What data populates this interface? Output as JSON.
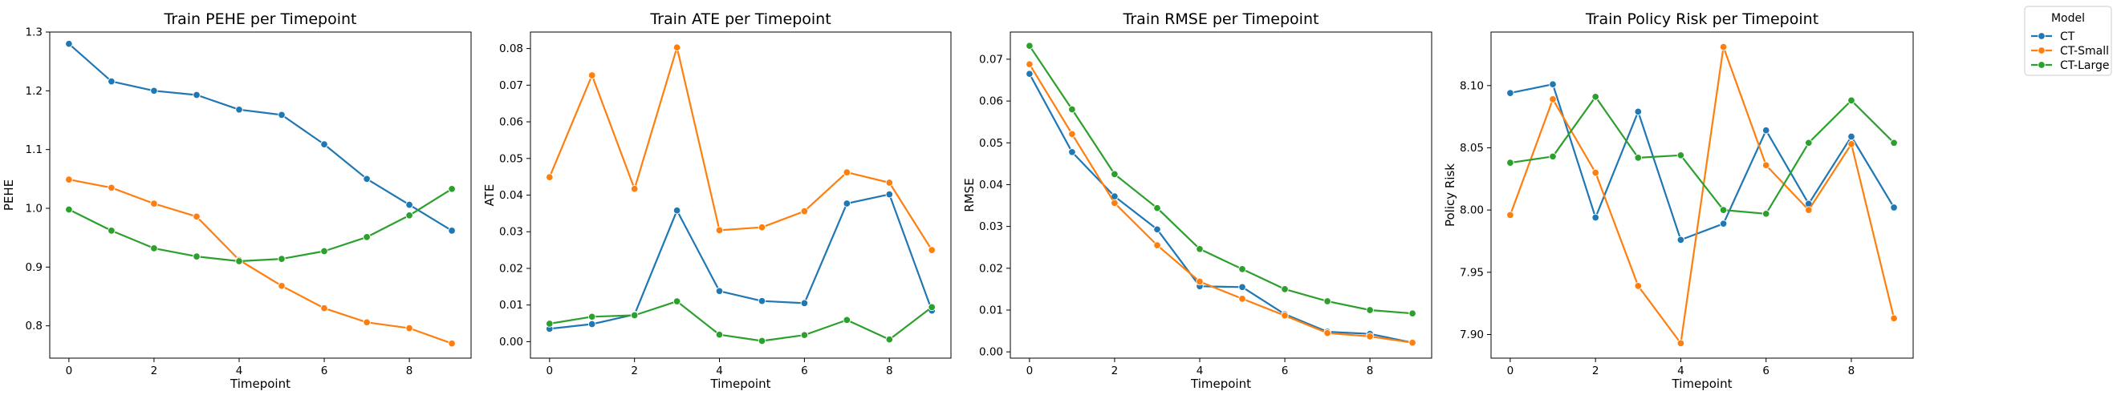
{
  "legend": {
    "title": "Model",
    "placement": "top-right",
    "entries": [
      {
        "label": "CT",
        "color": "#1f77b4"
      },
      {
        "label": "CT-Small",
        "color": "#ff7f0e"
      },
      {
        "label": "CT-Large",
        "color": "#2ca02c"
      }
    ]
  },
  "chart_data": [
    {
      "type": "line",
      "title": "Train PEHE per Timepoint",
      "xlabel": "Timepoint",
      "ylabel": "PEHE",
      "x": [
        0,
        1,
        2,
        3,
        4,
        5,
        6,
        7,
        8,
        9
      ],
      "xlim": [
        -0.45,
        9.45
      ],
      "ylim": [
        0.745,
        1.3
      ],
      "xticks": [
        0,
        2,
        4,
        6,
        8
      ],
      "yticks": [
        0.8,
        0.9,
        1.0,
        1.1,
        1.2,
        1.3
      ],
      "ytick_labels": [
        "0.8",
        "0.9",
        "1.0",
        "1.1",
        "1.2",
        "1.3"
      ],
      "grid": false,
      "series": [
        {
          "name": "CT",
          "color": "#1f77b4",
          "values": [
            1.28,
            1.216,
            1.2,
            1.193,
            1.168,
            1.159,
            1.109,
            1.05,
            1.006,
            0.962
          ]
        },
        {
          "name": "CT-Small",
          "color": "#ff7f0e",
          "values": [
            1.049,
            1.035,
            1.008,
            0.986,
            0.912,
            0.868,
            0.83,
            0.806,
            0.796,
            0.77
          ]
        },
        {
          "name": "CT-Large",
          "color": "#2ca02c",
          "values": [
            0.998,
            0.962,
            0.932,
            0.918,
            0.91,
            0.914,
            0.927,
            0.951,
            0.988,
            1.033
          ]
        }
      ]
    },
    {
      "type": "line",
      "title": "Train ATE per Timepoint",
      "xlabel": "Timepoint",
      "ylabel": "ATE",
      "x": [
        0,
        1,
        2,
        3,
        4,
        5,
        6,
        7,
        8,
        9
      ],
      "xlim": [
        -0.45,
        9.45
      ],
      "ylim": [
        -0.0045,
        0.0845
      ],
      "xticks": [
        0,
        2,
        4,
        6,
        8
      ],
      "yticks": [
        0.0,
        0.01,
        0.02,
        0.03,
        0.04,
        0.05,
        0.06,
        0.07,
        0.08
      ],
      "ytick_labels": [
        "0.00",
        "0.01",
        "0.02",
        "0.03",
        "0.04",
        "0.05",
        "0.06",
        "0.07",
        "0.08"
      ],
      "grid": false,
      "series": [
        {
          "name": "CT",
          "color": "#1f77b4",
          "values": [
            0.0035,
            0.0048,
            0.0074,
            0.0358,
            0.0138,
            0.0111,
            0.0105,
            0.0377,
            0.0402,
            0.0085
          ]
        },
        {
          "name": "CT-Small",
          "color": "#ff7f0e",
          "values": [
            0.0449,
            0.0727,
            0.0417,
            0.0803,
            0.0304,
            0.0312,
            0.0356,
            0.0462,
            0.0434,
            0.025
          ]
        },
        {
          "name": "CT-Large",
          "color": "#2ca02c",
          "values": [
            0.0049,
            0.0068,
            0.0072,
            0.011,
            0.0019,
            0.0002,
            0.0018,
            0.0059,
            0.0006,
            0.0094
          ]
        }
      ]
    },
    {
      "type": "line",
      "title": "Train RMSE per Timepoint",
      "xlabel": "Timepoint",
      "ylabel": "RMSE",
      "x": [
        0,
        1,
        2,
        3,
        4,
        5,
        6,
        7,
        8,
        9
      ],
      "xlim": [
        -0.45,
        9.45
      ],
      "ylim": [
        -0.0015,
        0.0765
      ],
      "xticks": [
        0,
        2,
        4,
        6,
        8
      ],
      "yticks": [
        0.0,
        0.01,
        0.02,
        0.03,
        0.04,
        0.05,
        0.06,
        0.07
      ],
      "ytick_labels": [
        "0.00",
        "0.01",
        "0.02",
        "0.03",
        "0.04",
        "0.05",
        "0.06",
        "0.07"
      ],
      "grid": false,
      "series": [
        {
          "name": "CT",
          "color": "#1f77b4",
          "values": [
            0.0665,
            0.0478,
            0.0372,
            0.0293,
            0.0157,
            0.0155,
            0.009,
            0.0048,
            0.0043,
            0.0022
          ]
        },
        {
          "name": "CT-Small",
          "color": "#ff7f0e",
          "values": [
            0.0688,
            0.0521,
            0.0356,
            0.0255,
            0.0168,
            0.0127,
            0.0087,
            0.0045,
            0.0037,
            0.0022
          ]
        },
        {
          "name": "CT-Large",
          "color": "#2ca02c",
          "values": [
            0.0732,
            0.058,
            0.0425,
            0.0344,
            0.0246,
            0.0198,
            0.015,
            0.0121,
            0.01,
            0.0092
          ]
        }
      ]
    },
    {
      "type": "line",
      "title": "Train Policy Risk per Timepoint",
      "xlabel": "Timepoint",
      "ylabel": "Policy Risk",
      "x": [
        0,
        1,
        2,
        3,
        4,
        5,
        6,
        7,
        8,
        9
      ],
      "xlim": [
        -0.45,
        9.45
      ],
      "ylim": [
        7.881,
        8.143
      ],
      "xticks": [
        0,
        2,
        4,
        6,
        8
      ],
      "yticks": [
        7.9,
        7.95,
        8.0,
        8.05,
        8.1
      ],
      "ytick_labels": [
        "7.90",
        "7.95",
        "8.00",
        "8.05",
        "8.10"
      ],
      "grid": false,
      "series": [
        {
          "name": "CT",
          "color": "#1f77b4",
          "values": [
            8.094,
            8.101,
            7.994,
            8.079,
            7.976,
            7.989,
            8.064,
            8.005,
            8.059,
            8.002
          ]
        },
        {
          "name": "CT-Small",
          "color": "#ff7f0e",
          "values": [
            7.996,
            8.089,
            8.03,
            7.939,
            7.893,
            8.131,
            8.036,
            8.0,
            8.053,
            7.913
          ]
        },
        {
          "name": "CT-Large",
          "color": "#2ca02c",
          "values": [
            8.038,
            8.043,
            8.091,
            8.042,
            8.044,
            8.0,
            7.997,
            8.054,
            8.088,
            8.054
          ]
        }
      ]
    }
  ]
}
